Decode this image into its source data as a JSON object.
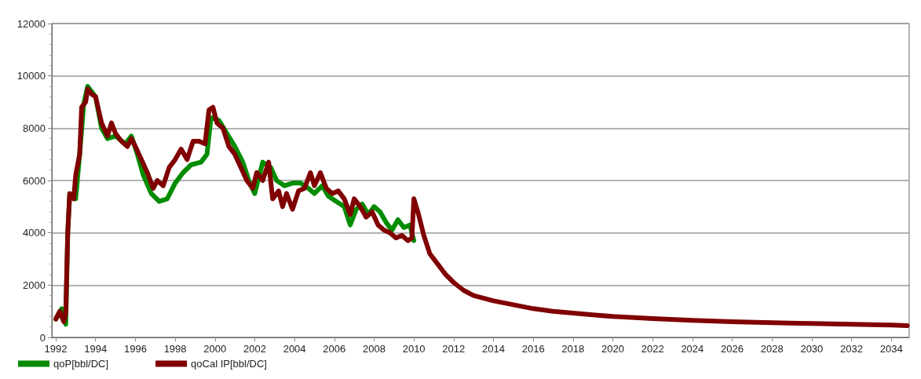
{
  "chart_data": {
    "type": "line",
    "xlim": [
      1991.8,
      2034.9
    ],
    "xticks": [
      1992,
      1994,
      1996,
      1998,
      2000,
      2002,
      2004,
      2006,
      2008,
      2010,
      2012,
      2014,
      2016,
      2018,
      2020,
      2022,
      2024,
      2026,
      2028,
      2030,
      2032,
      2034
    ],
    "ylim": [
      0,
      12000
    ],
    "yticks": [
      0,
      2000,
      4000,
      6000,
      8000,
      10000,
      12000
    ],
    "grid": "y",
    "legend": "bottom left",
    "marker": "none",
    "line_style": "solid",
    "series": [
      {
        "name": "qoP[bbl/DC]",
        "color": "#008c00",
        "x": [
          1992.0,
          1992.3,
          1992.5,
          1992.6,
          1992.7,
          1993.0,
          1993.2,
          1993.4,
          1993.6,
          1994.0,
          1994.3,
          1994.6,
          1995.0,
          1995.5,
          1995.8,
          1996.1,
          1996.4,
          1996.8,
          1997.2,
          1997.6,
          1998.0,
          1998.4,
          1998.8,
          1999.3,
          1999.6,
          1999.8,
          2000.2,
          2000.6,
          2001.0,
          2001.4,
          2001.7,
          2002.0,
          2002.4,
          2002.8,
          2003.1,
          2003.5,
          2003.9,
          2004.3,
          2004.7,
          2005.0,
          2005.4,
          2005.7,
          2006.1,
          2006.5,
          2006.8,
          2007.1,
          2007.4,
          2007.7,
          2008.0,
          2008.3,
          2008.6,
          2008.9,
          2009.2,
          2009.5,
          2009.8,
          2010.0
        ],
        "values": [
          700,
          1100,
          500,
          4000,
          5500,
          5300,
          7000,
          8900,
          9600,
          9200,
          8000,
          7600,
          7700,
          7400,
          7700,
          7000,
          6200,
          5500,
          5200,
          5300,
          5900,
          6300,
          6600,
          6700,
          7000,
          8400,
          8300,
          7800,
          7300,
          6700,
          6000,
          5500,
          6700,
          6500,
          6000,
          5800,
          5900,
          5900,
          5700,
          5500,
          5800,
          5400,
          5200,
          5000,
          4300,
          4900,
          5100,
          4700,
          5000,
          4800,
          4400,
          4100,
          4500,
          4200,
          4300,
          3700
        ]
      },
      {
        "name": "qoCal IP[bbl/DC]",
        "color": "#800000",
        "x": [
          1992.0,
          1992.2,
          1992.4,
          1992.5,
          1992.6,
          1992.7,
          1992.9,
          1993.0,
          1993.2,
          1993.3,
          1993.5,
          1993.6,
          1993.8,
          1994.0,
          1994.3,
          1994.6,
          1994.8,
          1995.0,
          1995.3,
          1995.6,
          1995.8,
          1996.0,
          1996.3,
          1996.6,
          1996.9,
          1997.1,
          1997.4,
          1997.7,
          1998.0,
          1998.3,
          1998.6,
          1998.9,
          1999.2,
          1999.5,
          1999.7,
          1999.9,
          2000.1,
          2000.4,
          2000.7,
          2001.0,
          2001.3,
          2001.6,
          2001.9,
          2002.1,
          2002.4,
          2002.7,
          2002.9,
          2003.2,
          2003.4,
          2003.6,
          2003.9,
          2004.2,
          2004.5,
          2004.8,
          2005.0,
          2005.3,
          2005.6,
          2005.9,
          2006.2,
          2006.5,
          2006.8,
          2007.0,
          2007.3,
          2007.6,
          2007.9,
          2008.2,
          2008.5,
          2008.8,
          2009.1,
          2009.4,
          2009.7,
          2009.9,
          2010.0,
          2010.2,
          2010.5,
          2010.8,
          2011.2,
          2011.6,
          2012.0,
          2012.5,
          2013.0,
          2014,
          2015,
          2016,
          2017,
          2018,
          2019,
          2020,
          2022,
          2024,
          2026,
          2028,
          2030,
          2032,
          2034,
          2034.8
        ],
        "values": [
          700,
          1000,
          600,
          900,
          4000,
          5500,
          5300,
          6200,
          7000,
          8800,
          9000,
          9500,
          9300,
          9200,
          8200,
          7700,
          8200,
          7800,
          7500,
          7300,
          7600,
          7300,
          6800,
          6300,
          5700,
          6000,
          5800,
          6500,
          6800,
          7200,
          6800,
          7500,
          7500,
          7400,
          8700,
          8800,
          8200,
          8000,
          7300,
          7000,
          6500,
          6000,
          5700,
          6300,
          6000,
          6700,
          5300,
          5600,
          5000,
          5500,
          4900,
          5600,
          5700,
          6300,
          5800,
          6300,
          5700,
          5500,
          5600,
          5300,
          4700,
          5300,
          5000,
          4600,
          4800,
          4300,
          4100,
          4000,
          3800,
          3900,
          3700,
          3800,
          5300,
          4800,
          3900,
          3200,
          2800,
          2400,
          2100,
          1800,
          1600,
          1400,
          1250,
          1100,
          1000,
          930,
          860,
          800,
          720,
          650,
          600,
          560,
          530,
          500,
          470,
          450
        ]
      }
    ]
  }
}
